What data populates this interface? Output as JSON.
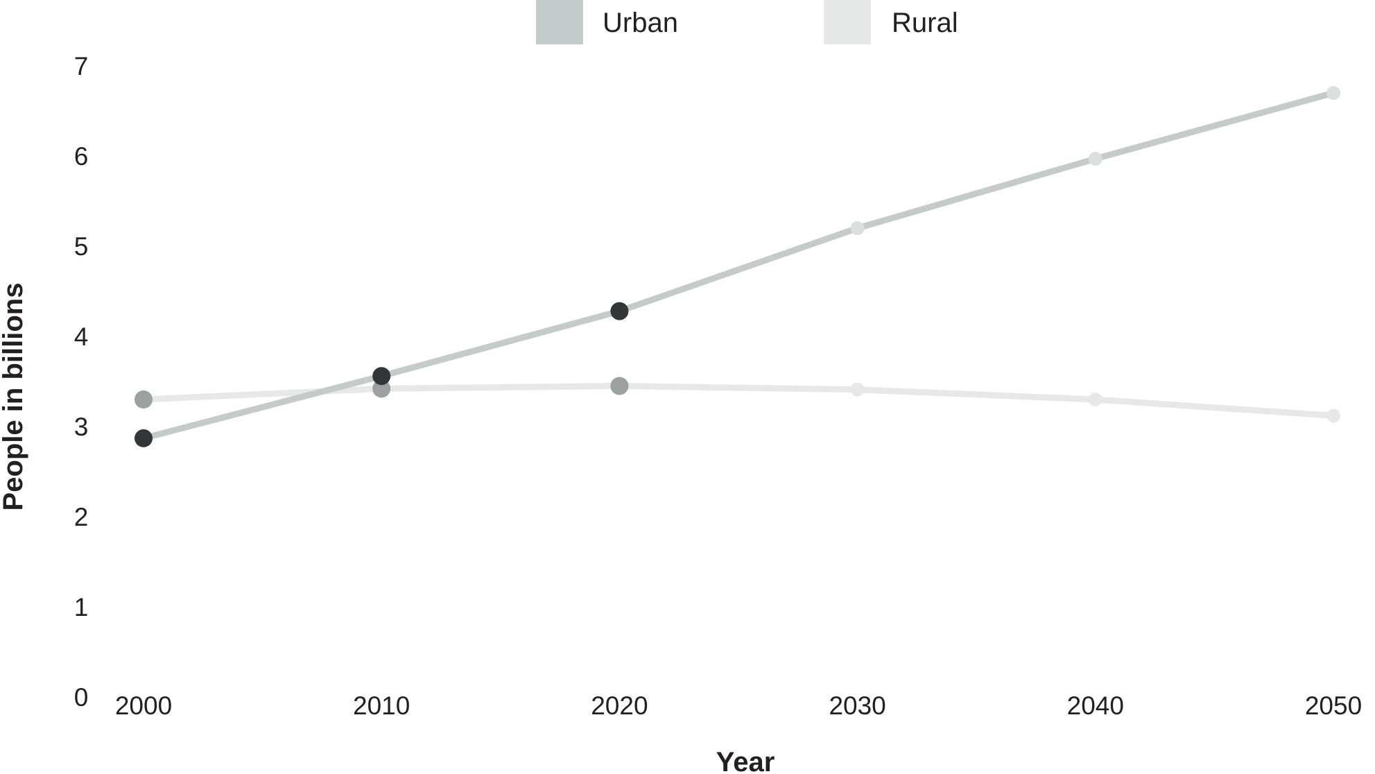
{
  "chart_data": {
    "type": "line",
    "x": [
      2000,
      2010,
      2020,
      2030,
      2040,
      2050
    ],
    "x_tick_labels": [
      "2000",
      "2010",
      "2020",
      "2030",
      "2040",
      "2050"
    ],
    "y_tick_labels": [
      "0",
      "1",
      "2",
      "3",
      "4",
      "5",
      "6",
      "7"
    ],
    "ylim": [
      0,
      7
    ],
    "xlabel": "Year",
    "ylabel": "People in billions",
    "legend_position": "top-center",
    "grid": false,
    "series": [
      {
        "name": "Urban",
        "values": [
          2.87,
          3.56,
          4.28,
          5.2,
          5.97,
          6.7
        ],
        "line_color": "#c5cacb",
        "point_colors": [
          "#333638",
          "#333638",
          "#333638",
          "#dcdfdf",
          "#dcdfdf",
          "#dcdfdf"
        ]
      },
      {
        "name": "Rural",
        "values": [
          3.3,
          3.42,
          3.45,
          3.41,
          3.3,
          3.12
        ],
        "line_color": "#e7e9e8",
        "point_colors": [
          "#9ba1a0",
          "#9ba1a0",
          "#9ba1a0",
          "#e7e9e8",
          "#e7e9e8",
          "#e7e9e8"
        ]
      }
    ]
  }
}
